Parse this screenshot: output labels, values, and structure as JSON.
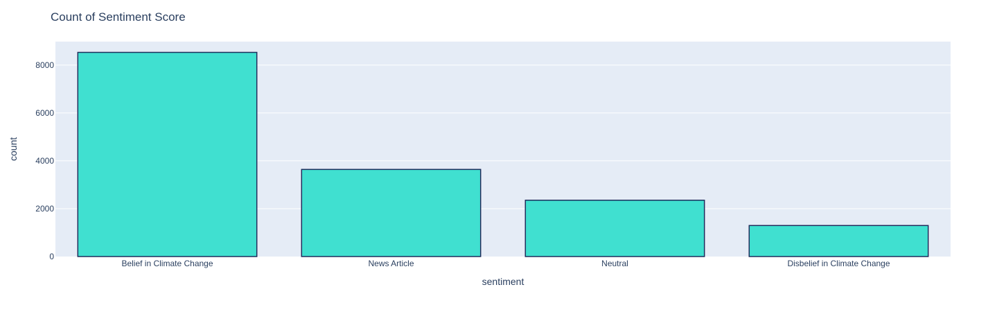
{
  "chart_data": {
    "type": "bar",
    "title": "Count of Sentiment Score",
    "xlabel": "sentiment",
    "ylabel": "count",
    "categories": [
      "Belief in Climate Change",
      "News Article",
      "Neutral",
      "Disbelief in Climate Change"
    ],
    "values": [
      8530,
      3640,
      2353,
      1296
    ],
    "ylim": [
      0,
      8980
    ],
    "yticks": [
      0,
      2000,
      4000,
      6000,
      8000
    ],
    "ytick_labels": [
      "0",
      "2000",
      "4000",
      "6000",
      "8000"
    ],
    "grid": true,
    "legend": "none",
    "colors": {
      "bar_fill": "#40e0d0",
      "bar_outline": "#1f2d5c",
      "plot_background": "#e5ecf6",
      "grid": "#ffffff",
      "text": "#2a3f5f"
    }
  }
}
